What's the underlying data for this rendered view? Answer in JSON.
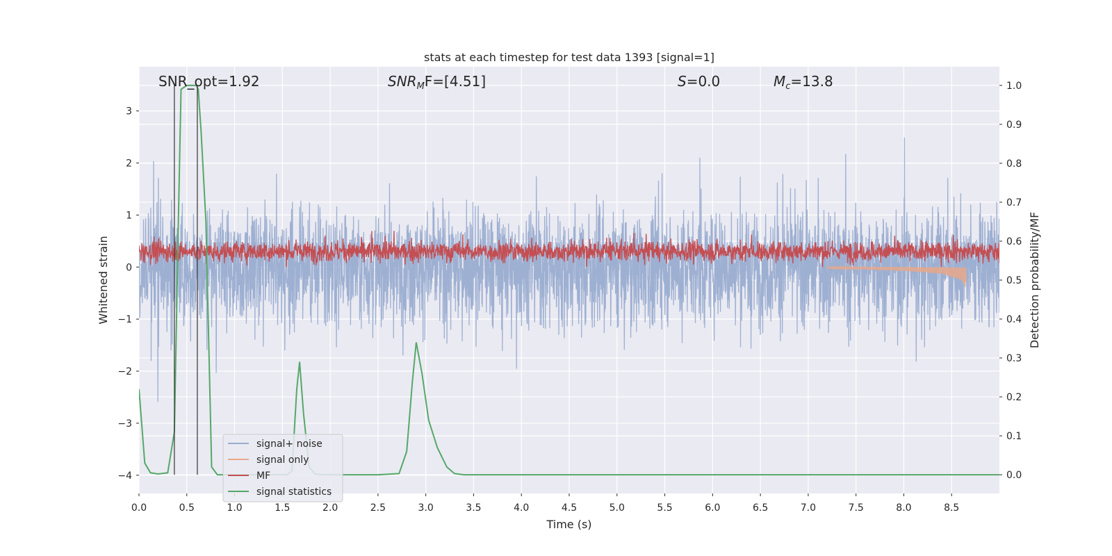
{
  "chart_data": {
    "type": "line",
    "title": "stats at each timestep for test data 1393 [signal=1]",
    "xlabel": "Time (s)",
    "ylabel": "Whitened strain",
    "ylabel_right": "Detection probability/MF",
    "xlim": [
      0.0,
      9.0
    ],
    "ylim": [
      -4.35,
      3.85
    ],
    "ylim_right": [
      -0.048,
      1.048
    ],
    "x_ticks": [
      "0.0",
      "0.5",
      "1.0",
      "1.5",
      "2.0",
      "2.5",
      "3.0",
      "3.5",
      "4.0",
      "4.5",
      "5.0",
      "5.5",
      "6.0",
      "6.5",
      "7.0",
      "7.5",
      "8.0",
      "8.5"
    ],
    "y_ticks": [
      "3",
      "2",
      "1",
      "0",
      "−1",
      "−2",
      "−3",
      "−4"
    ],
    "y_ticks_right": [
      "1.0",
      "0.9",
      "0.8",
      "0.7",
      "0.6",
      "0.5",
      "0.4",
      "0.3",
      "0.2",
      "0.1",
      "0.0"
    ],
    "grid": true,
    "legend_position": "lower-left",
    "annotations": {
      "snr_opt": "SNR_opt=1.92",
      "snr_mf_base": "SNR",
      "snr_mf_sub": "M",
      "snr_mf_rest": "F=[4.51]",
      "s_sym": "S",
      "s_rest": "=0.0",
      "mc_sym": "M",
      "mc_sub": "c",
      "mc_rest": "=13.8"
    },
    "series": [
      {
        "name": "signal+ noise",
        "color": "#9aadd0",
        "description": "noisy whitened strain, amplitude roughly within [-3, 3.5]",
        "x": [
          0.0,
          9.0
        ],
        "y_range": [
          -4.0,
          3.5
        ]
      },
      {
        "name": "signal only",
        "color": "#e8a88a",
        "description": "chirp signal, near 0 growing to about -0.4 at ~8.65 s",
        "x": [
          7.2,
          7.6,
          8.0,
          8.4,
          8.6,
          8.65
        ],
        "y": [
          -0.02,
          -0.04,
          -0.07,
          -0.13,
          -0.25,
          -0.4
        ]
      },
      {
        "name": "MF",
        "color": "#c44e52",
        "description": "matched filter output, oscillating between about 0.0 and 0.65",
        "x": [
          0.0,
          9.0
        ],
        "y_range": [
          0.0,
          0.85
        ]
      },
      {
        "name": "signal statistics",
        "color": "#55a868",
        "axis": "right",
        "x": [
          0.0,
          0.06,
          0.12,
          0.2,
          0.3,
          0.37,
          0.41,
          0.44,
          0.5,
          0.6,
          0.62,
          0.65,
          0.7,
          0.76,
          0.82,
          0.9,
          1.0,
          1.2,
          1.4,
          1.55,
          1.6,
          1.65,
          1.68,
          1.72,
          1.78,
          1.84,
          1.9,
          2.0,
          2.5,
          2.72,
          2.8,
          2.86,
          2.9,
          2.96,
          3.03,
          3.12,
          3.22,
          3.3,
          3.4,
          3.6,
          4.0,
          5.0,
          6.0,
          7.0,
          8.0,
          9.0
        ],
        "y": [
          0.22,
          0.03,
          0.005,
          0.002,
          0.005,
          0.11,
          0.63,
          0.99,
          1.0,
          1.0,
          0.99,
          0.88,
          0.65,
          0.02,
          0.0,
          0.0,
          0.0,
          0.0,
          0.0,
          0.0,
          0.01,
          0.22,
          0.29,
          0.16,
          0.02,
          0.002,
          0.0,
          0.0,
          0.0,
          0.003,
          0.06,
          0.24,
          0.34,
          0.26,
          0.14,
          0.07,
          0.02,
          0.003,
          0.0,
          0.0,
          0.0,
          0.0,
          0.0,
          0.0,
          0.0,
          0.0
        ]
      }
    ],
    "vertical_markers": [
      0.37,
      0.61
    ],
    "colors": {
      "background": "#eaeaf2",
      "grid": "#ffffff",
      "marker": "#333333"
    }
  }
}
